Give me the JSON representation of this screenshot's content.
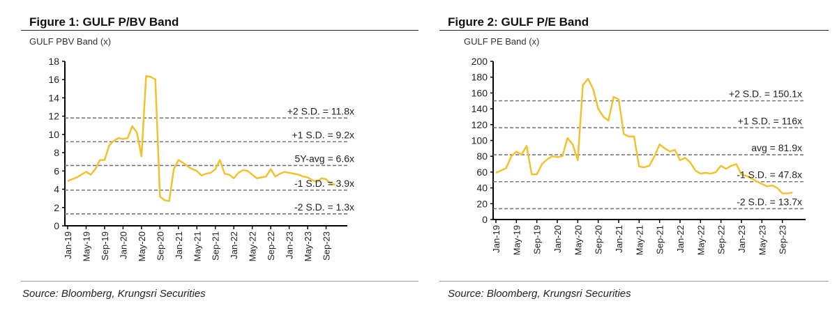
{
  "figures": [
    {
      "title": "Figure 1: GULF P/BV Band",
      "source": "Source: Bloomberg, Krungsri Securities"
    },
    {
      "title": "Figure 2: GULF P/E Band",
      "source": "Source: Bloomberg, Krungsri Securities"
    }
  ],
  "colors": {
    "series": "#F2C12E",
    "bands": "#777777"
  },
  "chart_data": [
    {
      "type": "line",
      "title": "",
      "ylabel": "GULF PBV Band (x)",
      "ylim": [
        0,
        18
      ],
      "yticks": [
        0,
        2,
        4,
        6,
        8,
        10,
        12,
        14,
        16,
        18
      ],
      "xtick_labels": [
        "Jan-19",
        "May-19",
        "Sep-19",
        "Jan-20",
        "May-20",
        "Sep-20",
        "Jan-21",
        "May-21",
        "Sep-21",
        "Jan-22",
        "May-22",
        "Sep-22",
        "Jan-23",
        "May-23",
        "Sep-23"
      ],
      "x_start": "Jan-19",
      "x_freq": "monthly",
      "values": [
        4.9,
        5.1,
        5.3,
        5.6,
        5.9,
        5.6,
        6.2,
        7.2,
        7.2,
        8.8,
        9.3,
        9.6,
        9.5,
        9.6,
        10.9,
        10.2,
        7.6,
        16.4,
        16.3,
        16.0,
        3.2,
        2.8,
        2.7,
        6.2,
        7.2,
        6.9,
        6.5,
        6.2,
        6.0,
        5.5,
        5.7,
        5.8,
        6.2,
        7.2,
        5.7,
        5.6,
        5.2,
        5.8,
        6.1,
        6.0,
        5.6,
        5.2,
        5.3,
        5.4,
        6.2,
        5.4,
        5.7,
        5.9,
        5.8,
        5.7,
        5.6,
        5.4,
        5.3,
        5.0,
        4.8,
        5.2,
        5.1,
        4.6,
        4.5
      ],
      "bands": [
        {
          "label": "+2 S.D. = 11.8x",
          "value": 11.8
        },
        {
          "label": "+1 S.D. = 9.2x",
          "value": 9.2
        },
        {
          "label": "5Y-avg = 6.6x",
          "value": 6.6
        },
        {
          "label": "-1 S.D. = 3.9x",
          "value": 3.9
        },
        {
          "label": "-2 S.D. = 1.3x",
          "value": 1.3
        }
      ]
    },
    {
      "type": "line",
      "title": "",
      "ylabel": "GULF PE Band (x)",
      "ylim": [
        0,
        200
      ],
      "yticks": [
        0,
        20,
        40,
        60,
        80,
        100,
        120,
        140,
        160,
        180,
        200
      ],
      "xtick_labels": [
        "Jan-19",
        "May-19",
        "Sep-19",
        "Jan-20",
        "May-20",
        "Sep-20",
        "Jan-21",
        "May-21",
        "Sep-21",
        "Jan-22",
        "May-22",
        "Sep-22",
        "Jan-23",
        "May-23",
        "Sep-23"
      ],
      "x_start": "Jan-19",
      "x_freq": "monthly",
      "values": [
        59,
        62,
        65,
        80,
        86,
        82,
        93,
        57,
        57,
        70,
        76,
        80,
        79,
        80,
        103,
        95,
        75,
        170,
        178,
        165,
        140,
        130,
        125,
        155,
        152,
        108,
        105,
        105,
        67,
        66,
        68,
        80,
        95,
        90,
        86,
        88,
        75,
        78,
        72,
        62,
        58,
        59,
        58,
        60,
        68,
        64,
        68,
        70,
        57,
        55,
        52,
        48,
        45,
        42,
        43,
        40,
        33,
        33,
        34
      ],
      "bands": [
        {
          "label": "+2 S.D. = 150.1x",
          "value": 150.1
        },
        {
          "label": "+1 S.D. = 116x",
          "value": 116
        },
        {
          "label": "avg = 81.9x",
          "value": 81.9
        },
        {
          "label": "-1 S.D. = 47.8x",
          "value": 47.8
        },
        {
          "label": "-2 S.D. = 13.7x",
          "value": 13.7
        }
      ]
    }
  ]
}
